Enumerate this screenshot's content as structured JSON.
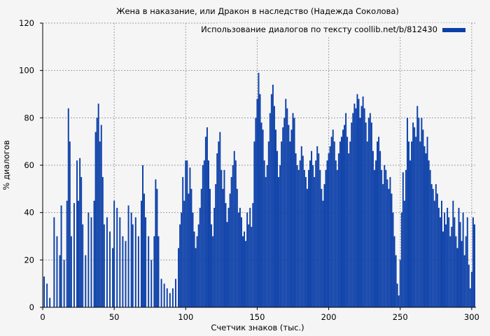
{
  "colors": {
    "background": "#f5f5f5",
    "bars": "#0b3fa8",
    "grid": "#a0a0a0",
    "axis": "#000000"
  },
  "chart_data": {
    "type": "bar",
    "title": "Жена в наказание, или Дракон в наследство (Надежда Соколова)",
    "xlabel": "Счетчик знаков (тыс.)",
    "ylabel": "% диалогов",
    "xlim": [
      0,
      303
    ],
    "ylim": [
      0,
      120
    ],
    "xticks": [
      "0",
      "50",
      "100",
      "150",
      "200",
      "250",
      "300"
    ],
    "yticks": [
      "0",
      "20",
      "40",
      "60",
      "80",
      "100",
      "120"
    ],
    "grid": true,
    "legend_position": "top-right",
    "series": [
      {
        "name": "Использование диалогов по тексту coollib.net/b/812430",
        "color": "#0b3fa8",
        "points": [
          [
            1,
            13
          ],
          [
            3,
            10
          ],
          [
            5,
            4
          ],
          [
            8,
            38
          ],
          [
            10,
            30
          ],
          [
            12,
            22
          ],
          [
            13,
            43
          ],
          [
            15,
            20
          ],
          [
            17,
            45
          ],
          [
            18,
            84
          ],
          [
            19,
            70
          ],
          [
            20,
            30
          ],
          [
            22,
            44
          ],
          [
            24,
            62
          ],
          [
            25,
            45
          ],
          [
            26,
            63
          ],
          [
            27,
            55
          ],
          [
            28,
            35
          ],
          [
            30,
            22
          ],
          [
            32,
            40
          ],
          [
            34,
            38
          ],
          [
            36,
            45
          ],
          [
            37,
            74
          ],
          [
            38,
            80
          ],
          [
            39,
            86
          ],
          [
            40,
            70
          ],
          [
            41,
            77
          ],
          [
            42,
            55
          ],
          [
            43,
            35
          ],
          [
            45,
            38
          ],
          [
            47,
            32
          ],
          [
            49,
            25
          ],
          [
            50,
            45
          ],
          [
            52,
            42
          ],
          [
            54,
            38
          ],
          [
            56,
            30
          ],
          [
            58,
            28
          ],
          [
            60,
            43
          ],
          [
            62,
            40
          ],
          [
            63,
            35
          ],
          [
            65,
            38
          ],
          [
            67,
            30
          ],
          [
            69,
            45
          ],
          [
            70,
            60
          ],
          [
            71,
            48
          ],
          [
            72,
            38
          ],
          [
            74,
            30
          ],
          [
            76,
            20
          ],
          [
            78,
            30
          ],
          [
            79,
            54
          ],
          [
            80,
            50
          ],
          [
            81,
            30
          ],
          [
            83,
            12
          ],
          [
            85,
            10
          ],
          [
            87,
            8
          ],
          [
            89,
            6
          ],
          [
            91,
            8
          ],
          [
            93,
            12
          ],
          [
            95,
            25
          ],
          [
            96,
            35
          ],
          [
            97,
            40
          ],
          [
            98,
            55
          ],
          [
            99,
            45
          ],
          [
            100,
            62
          ],
          [
            101,
            62
          ],
          [
            102,
            48
          ],
          [
            103,
            59
          ],
          [
            104,
            50
          ],
          [
            105,
            40
          ],
          [
            106,
            32
          ],
          [
            107,
            25
          ],
          [
            108,
            30
          ],
          [
            109,
            35
          ],
          [
            110,
            42
          ],
          [
            111,
            50
          ],
          [
            112,
            60
          ],
          [
            113,
            62
          ],
          [
            114,
            72
          ],
          [
            115,
            76
          ],
          [
            116,
            62
          ],
          [
            117,
            50
          ],
          [
            118,
            35
          ],
          [
            119,
            30
          ],
          [
            120,
            42
          ],
          [
            121,
            52
          ],
          [
            122,
            65
          ],
          [
            123,
            70
          ],
          [
            124,
            74
          ],
          [
            125,
            58
          ],
          [
            126,
            50
          ],
          [
            127,
            58
          ],
          [
            128,
            44
          ],
          [
            129,
            36
          ],
          [
            130,
            42
          ],
          [
            131,
            48
          ],
          [
            132,
            55
          ],
          [
            133,
            60
          ],
          [
            134,
            66
          ],
          [
            135,
            62
          ],
          [
            136,
            50
          ],
          [
            137,
            40
          ],
          [
            138,
            42
          ],
          [
            139,
            38
          ],
          [
            140,
            30
          ],
          [
            141,
            32
          ],
          [
            142,
            28
          ],
          [
            143,
            40
          ],
          [
            144,
            35
          ],
          [
            145,
            42
          ],
          [
            146,
            34
          ],
          [
            147,
            44
          ],
          [
            148,
            70
          ],
          [
            149,
            80
          ],
          [
            150,
            88
          ],
          [
            151,
            99
          ],
          [
            152,
            90
          ],
          [
            153,
            78
          ],
          [
            154,
            75
          ],
          [
            155,
            62
          ],
          [
            156,
            55
          ],
          [
            157,
            60
          ],
          [
            158,
            70
          ],
          [
            159,
            82
          ],
          [
            160,
            90
          ],
          [
            161,
            94
          ],
          [
            162,
            85
          ],
          [
            163,
            75
          ],
          [
            164,
            66
          ],
          [
            165,
            55
          ],
          [
            166,
            60
          ],
          [
            167,
            70
          ],
          [
            168,
            76
          ],
          [
            169,
            80
          ],
          [
            170,
            88
          ],
          [
            171,
            84
          ],
          [
            172,
            77
          ],
          [
            173,
            70
          ],
          [
            174,
            75
          ],
          [
            175,
            82
          ],
          [
            176,
            80
          ],
          [
            177,
            65
          ],
          [
            178,
            60
          ],
          [
            179,
            58
          ],
          [
            180,
            62
          ],
          [
            181,
            68
          ],
          [
            182,
            64
          ],
          [
            183,
            58
          ],
          [
            184,
            55
          ],
          [
            185,
            50
          ],
          [
            186,
            58
          ],
          [
            187,
            62
          ],
          [
            188,
            66
          ],
          [
            189,
            60
          ],
          [
            190,
            55
          ],
          [
            191,
            62
          ],
          [
            192,
            68
          ],
          [
            193,
            65
          ],
          [
            194,
            58
          ],
          [
            195,
            50
          ],
          [
            196,
            45
          ],
          [
            197,
            52
          ],
          [
            198,
            58
          ],
          [
            199,
            62
          ],
          [
            200,
            65
          ],
          [
            201,
            68
          ],
          [
            202,
            72
          ],
          [
            203,
            75
          ],
          [
            204,
            70
          ],
          [
            205,
            62
          ],
          [
            206,
            58
          ],
          [
            207,
            65
          ],
          [
            208,
            70
          ],
          [
            209,
            72
          ],
          [
            210,
            75
          ],
          [
            211,
            77
          ],
          [
            212,
            82
          ],
          [
            213,
            72
          ],
          [
            214,
            65
          ],
          [
            215,
            70
          ],
          [
            216,
            78
          ],
          [
            217,
            82
          ],
          [
            218,
            86
          ],
          [
            219,
            84
          ],
          [
            220,
            90
          ],
          [
            221,
            88
          ],
          [
            222,
            80
          ],
          [
            223,
            85
          ],
          [
            224,
            89
          ],
          [
            225,
            84
          ],
          [
            226,
            78
          ],
          [
            227,
            70
          ],
          [
            228,
            80
          ],
          [
            229,
            82
          ],
          [
            230,
            78
          ],
          [
            231,
            66
          ],
          [
            232,
            58
          ],
          [
            233,
            62
          ],
          [
            234,
            70
          ],
          [
            235,
            72
          ],
          [
            236,
            66
          ],
          [
            237,
            58
          ],
          [
            238,
            52
          ],
          [
            239,
            60
          ],
          [
            240,
            58
          ],
          [
            241,
            54
          ],
          [
            242,
            50
          ],
          [
            243,
            55
          ],
          [
            244,
            48
          ],
          [
            245,
            40
          ],
          [
            246,
            30
          ],
          [
            247,
            22
          ],
          [
            248,
            10
          ],
          [
            249,
            5
          ],
          [
            250,
            20
          ],
          [
            251,
            40
          ],
          [
            252,
            57
          ],
          [
            253,
            45
          ],
          [
            254,
            58
          ],
          [
            255,
            80
          ],
          [
            256,
            70
          ],
          [
            257,
            62
          ],
          [
            258,
            70
          ],
          [
            259,
            78
          ],
          [
            260,
            76
          ],
          [
            261,
            72
          ],
          [
            262,
            85
          ],
          [
            263,
            80
          ],
          [
            264,
            70
          ],
          [
            265,
            80
          ],
          [
            266,
            75
          ],
          [
            267,
            68
          ],
          [
            268,
            65
          ],
          [
            269,
            72
          ],
          [
            270,
            62
          ],
          [
            271,
            58
          ],
          [
            272,
            52
          ],
          [
            273,
            50
          ],
          [
            274,
            45
          ],
          [
            275,
            52
          ],
          [
            276,
            48
          ],
          [
            277,
            42
          ],
          [
            278,
            38
          ],
          [
            279,
            45
          ],
          [
            280,
            32
          ],
          [
            281,
            40
          ],
          [
            282,
            35
          ],
          [
            283,
            42
          ],
          [
            284,
            38
          ],
          [
            285,
            30
          ],
          [
            286,
            34
          ],
          [
            287,
            45
          ],
          [
            288,
            38
          ],
          [
            289,
            30
          ],
          [
            290,
            25
          ],
          [
            291,
            42
          ],
          [
            292,
            36
          ],
          [
            293,
            28
          ],
          [
            294,
            40
          ],
          [
            295,
            22
          ],
          [
            296,
            30
          ],
          [
            297,
            38
          ],
          [
            298,
            18
          ],
          [
            299,
            8
          ],
          [
            300,
            15
          ],
          [
            301,
            38
          ],
          [
            302,
            35
          ]
        ]
      }
    ]
  }
}
